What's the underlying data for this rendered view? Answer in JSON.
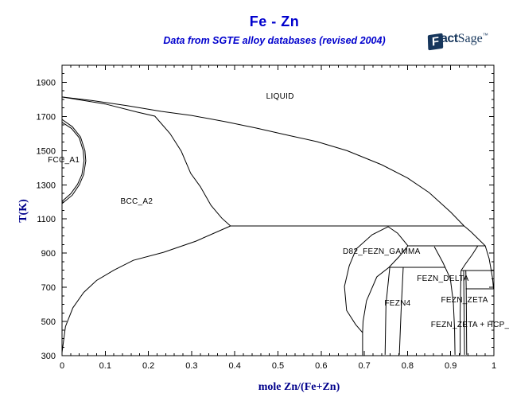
{
  "header": {
    "title": "Fe - Zn",
    "subtitle": "Data from SGTE alloy databases (revised 2004)",
    "title_color": "#0000cd"
  },
  "logo": {
    "f": "F",
    "act": "act",
    "sage": "Sage",
    "tm": "™",
    "color": "#16365c"
  },
  "chart_data": {
    "type": "line",
    "title": "Fe - Zn",
    "subtitle": "Data from SGTE alloy databases (revised 2004)",
    "xlabel": "mole Zn/(Fe+Zn)",
    "ylabel": "T(K)",
    "xlim": [
      0,
      1
    ],
    "ylim": [
      300,
      2000
    ],
    "grid": false,
    "line_color": "#000000",
    "x_ticks": {
      "major": [
        0,
        0.1,
        0.2,
        0.3,
        0.4,
        0.5,
        0.6,
        0.7,
        0.8,
        0.9,
        1
      ],
      "labels": [
        "0",
        "0.1",
        "0.2",
        "0.3",
        "0.4",
        "0.5",
        "0.6",
        "0.7",
        "0.8",
        "0.9",
        "1"
      ],
      "minor_step": 0.02
    },
    "y_ticks": {
      "major": [
        300,
        500,
        700,
        900,
        1100,
        1300,
        1500,
        1700,
        1900
      ],
      "labels": [
        "300",
        "500",
        "700",
        "900",
        "1100",
        "1300",
        "1500",
        "1700",
        "1900"
      ],
      "minor_step": 50
    },
    "regions": [
      {
        "label": "LIQUID",
        "x": 0.505,
        "T": 1818
      },
      {
        "label": "FCC_A1",
        "x": 0.004,
        "T": 1446
      },
      {
        "label": "BCC_A2",
        "x": 0.173,
        "T": 1203
      },
      {
        "label": "D82_FEZN_GAMMA",
        "x": 0.74,
        "T": 910
      },
      {
        "label": "FEZN_DELTA",
        "x": 0.882,
        "T": 752
      },
      {
        "label": "FEZN4",
        "x": 0.777,
        "T": 607
      },
      {
        "label": "FEZN_ZETA",
        "x": 0.932,
        "T": 626
      },
      {
        "label": "FEZN_ZETA + HCP_",
        "x": 0.945,
        "T": 482
      }
    ],
    "invariant_lines": [
      {
        "name": "peritectic-gamma",
        "T": 1059,
        "x1": 0.39,
        "x2": 0.931
      },
      {
        "name": "peritectic-delta",
        "T": 943,
        "x1": 0.801,
        "x2": 0.98
      },
      {
        "name": "peritectoid-fezn4",
        "T": 817,
        "x1": 0.757,
        "x2": 0.888
      },
      {
        "name": "peritectic-zeta",
        "T": 798,
        "x1": 0.924,
        "x2": 1.0
      },
      {
        "name": "eutectic-zn",
        "T": 691,
        "x1": 0.935,
        "x2": 1.0
      }
    ],
    "curves": [
      {
        "name": "liquidus-upper",
        "points": [
          [
            0,
            1814
          ],
          [
            0.07,
            1793
          ],
          [
            0.15,
            1764
          ],
          [
            0.23,
            1730
          ],
          [
            0.3,
            1706
          ],
          [
            0.38,
            1669
          ],
          [
            0.45,
            1632
          ],
          [
            0.52,
            1592
          ],
          [
            0.59,
            1553
          ],
          [
            0.66,
            1500
          ],
          [
            0.74,
            1418
          ],
          [
            0.8,
            1340
          ],
          [
            0.85,
            1255
          ],
          [
            0.9,
            1140
          ],
          [
            0.931,
            1059
          ]
        ]
      },
      {
        "name": "liquidus-lower",
        "points": [
          [
            0.931,
            1059
          ],
          [
            0.946,
            1027
          ],
          [
            0.963,
            985
          ],
          [
            0.98,
            943
          ],
          [
            0.989,
            868
          ],
          [
            0.994,
            798
          ],
          [
            0.997,
            750
          ],
          [
            0.999,
            692
          ]
        ]
      },
      {
        "name": "bcc-solidus",
        "points": [
          [
            0,
            1814
          ],
          [
            0.1,
            1773
          ],
          [
            0.175,
            1725
          ],
          [
            0.215,
            1702
          ],
          [
            0.25,
            1600
          ],
          [
            0.276,
            1497
          ],
          [
            0.298,
            1367
          ],
          [
            0.32,
            1290
          ],
          [
            0.345,
            1180
          ],
          [
            0.37,
            1105
          ],
          [
            0.39,
            1059
          ]
        ]
      },
      {
        "name": "bcc-solvus",
        "points": [
          [
            0.39,
            1059
          ],
          [
            0.31,
            970
          ],
          [
            0.235,
            905
          ],
          [
            0.165,
            858
          ],
          [
            0.12,
            800
          ],
          [
            0.08,
            740
          ],
          [
            0.05,
            670
          ],
          [
            0.025,
            580
          ],
          [
            0.008,
            470
          ],
          [
            0.0,
            318
          ]
        ]
      },
      {
        "name": "fcc-a1-loop-outer",
        "points": [
          [
            0,
            1683
          ],
          [
            0.024,
            1640
          ],
          [
            0.043,
            1580
          ],
          [
            0.053,
            1500
          ],
          [
            0.055,
            1440
          ],
          [
            0.05,
            1360
          ],
          [
            0.04,
            1300
          ],
          [
            0.024,
            1240
          ],
          [
            0,
            1190
          ]
        ]
      },
      {
        "name": "fcc-a1-loop-inner",
        "points": [
          [
            0,
            1666
          ],
          [
            0.022,
            1630
          ],
          [
            0.04,
            1575
          ],
          [
            0.049,
            1500
          ],
          [
            0.051,
            1441
          ],
          [
            0.046,
            1360
          ],
          [
            0.036,
            1303
          ],
          [
            0.02,
            1248
          ],
          [
            0,
            1203
          ]
        ]
      },
      {
        "name": "gamma-left-boundary",
        "points": [
          [
            0.755,
            1055
          ],
          [
            0.718,
            1008
          ],
          [
            0.681,
            924
          ],
          [
            0.665,
            826
          ],
          [
            0.654,
            705
          ],
          [
            0.659,
            565
          ],
          [
            0.68,
            482
          ],
          [
            0.696,
            435
          ],
          [
            0.696,
            303
          ]
        ]
      },
      {
        "name": "gamma-right-upper",
        "points": [
          [
            0.755,
            1055
          ],
          [
            0.777,
            1017
          ],
          [
            0.801,
            943
          ]
        ]
      },
      {
        "name": "gamma-right-solvus",
        "points": [
          [
            0.801,
            943
          ],
          [
            0.78,
            878
          ],
          [
            0.757,
            817
          ],
          [
            0.729,
            761
          ],
          [
            0.705,
            621
          ],
          [
            0.697,
            500
          ],
          [
            0.696,
            435
          ]
        ]
      },
      {
        "name": "fezn4-left-boundary",
        "points": [
          [
            0.759,
            817
          ],
          [
            0.75,
            600
          ],
          [
            0.748,
            305
          ]
        ]
      },
      {
        "name": "fezn4-right-boundary",
        "points": [
          [
            0.79,
            817
          ],
          [
            0.785,
            560
          ],
          [
            0.781,
            305
          ]
        ]
      },
      {
        "name": "delta-left-boundary",
        "points": [
          [
            0.862,
            938
          ],
          [
            0.882,
            845
          ],
          [
            0.899,
            752
          ],
          [
            0.906,
            612
          ],
          [
            0.909,
            450
          ],
          [
            0.91,
            305
          ]
        ]
      },
      {
        "name": "delta-right-upper",
        "points": [
          [
            0.963,
            943
          ],
          [
            0.95,
            892
          ],
          [
            0.935,
            840
          ],
          [
            0.924,
            798
          ]
        ]
      },
      {
        "name": "delta-right-solvus",
        "points": [
          [
            0.924,
            798
          ],
          [
            0.922,
            550
          ],
          [
            0.922,
            305
          ]
        ]
      },
      {
        "name": "zeta-left-boundary",
        "points": [
          [
            0.93,
            798
          ],
          [
            0.932,
            305
          ]
        ]
      },
      {
        "name": "zeta-right-boundary",
        "points": [
          [
            0.935,
            798
          ],
          [
            0.936,
            691
          ],
          [
            0.937,
            305
          ]
        ]
      }
    ]
  }
}
